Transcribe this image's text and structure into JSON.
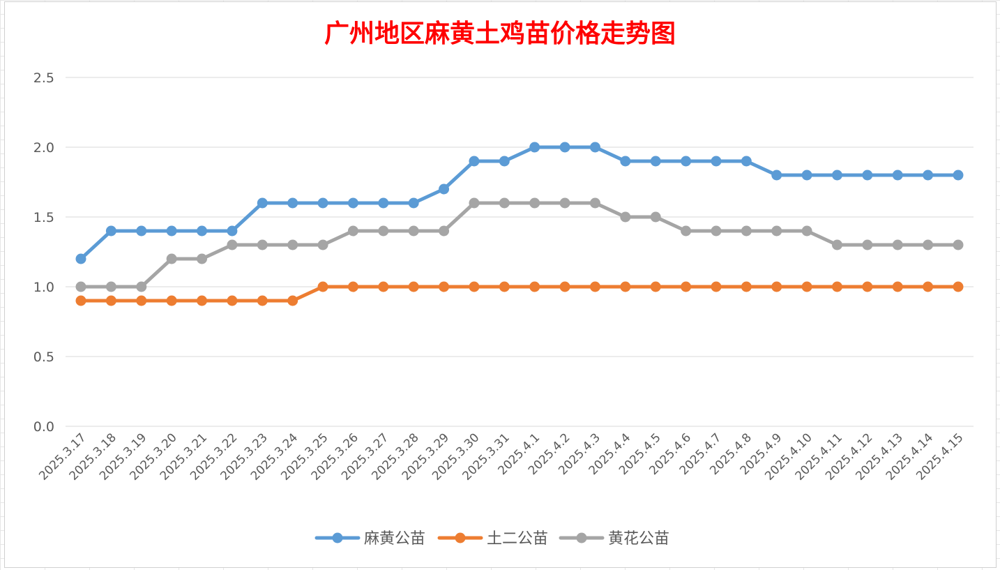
{
  "chart_data": {
    "type": "line",
    "title": "广州地区麻黄土鸡苗价格走势图",
    "xlabel": "",
    "ylabel": "",
    "ylim": [
      0,
      2.5
    ],
    "yticks": [
      "0.0",
      "0.5",
      "1.0",
      "1.5",
      "2.0",
      "2.5"
    ],
    "grid": true,
    "legend_position": "bottom",
    "categories": [
      "2025.3.17",
      "2025.3.18",
      "2025.3.19",
      "2025.3.20",
      "2025.3.21",
      "2025.3.22",
      "2025.3.23",
      "2025.3.24",
      "2025.3.25",
      "2025.3.26",
      "2025.3.27",
      "2025.3.28",
      "2025.3.29",
      "2025.3.30",
      "2025.3.31",
      "2025.4.1",
      "2025.4.2",
      "2025.4.3",
      "2025.4.4",
      "2025.4.5",
      "2025.4.6",
      "2025.4.7",
      "2025.4.8",
      "2025.4.9",
      "2025.4.10",
      "2025.4.11",
      "2025.4.12",
      "2025.4.13",
      "2025.4.14",
      "2025.4.15"
    ],
    "series": [
      {
        "name": "麻黄公苗",
        "color": "#5b9bd5",
        "values": [
          1.2,
          1.4,
          1.4,
          1.4,
          1.4,
          1.4,
          1.6,
          1.6,
          1.6,
          1.6,
          1.6,
          1.6,
          1.7,
          1.9,
          1.9,
          2.0,
          2.0,
          2.0,
          1.9,
          1.9,
          1.9,
          1.9,
          1.9,
          1.8,
          1.8,
          1.8,
          1.8,
          1.8,
          1.8,
          1.8
        ]
      },
      {
        "name": "土二公苗",
        "color": "#ed7d31",
        "values": [
          0.9,
          0.9,
          0.9,
          0.9,
          0.9,
          0.9,
          0.9,
          0.9,
          1.0,
          1.0,
          1.0,
          1.0,
          1.0,
          1.0,
          1.0,
          1.0,
          1.0,
          1.0,
          1.0,
          1.0,
          1.0,
          1.0,
          1.0,
          1.0,
          1.0,
          1.0,
          1.0,
          1.0,
          1.0,
          1.0
        ]
      },
      {
        "name": "黄花公苗",
        "color": "#a5a5a5",
        "values": [
          1.0,
          1.0,
          1.0,
          1.2,
          1.2,
          1.3,
          1.3,
          1.3,
          1.3,
          1.4,
          1.4,
          1.4,
          1.4,
          1.6,
          1.6,
          1.6,
          1.6,
          1.6,
          1.5,
          1.5,
          1.4,
          1.4,
          1.4,
          1.4,
          1.4,
          1.3,
          1.3,
          1.3,
          1.3,
          1.3
        ]
      }
    ]
  }
}
